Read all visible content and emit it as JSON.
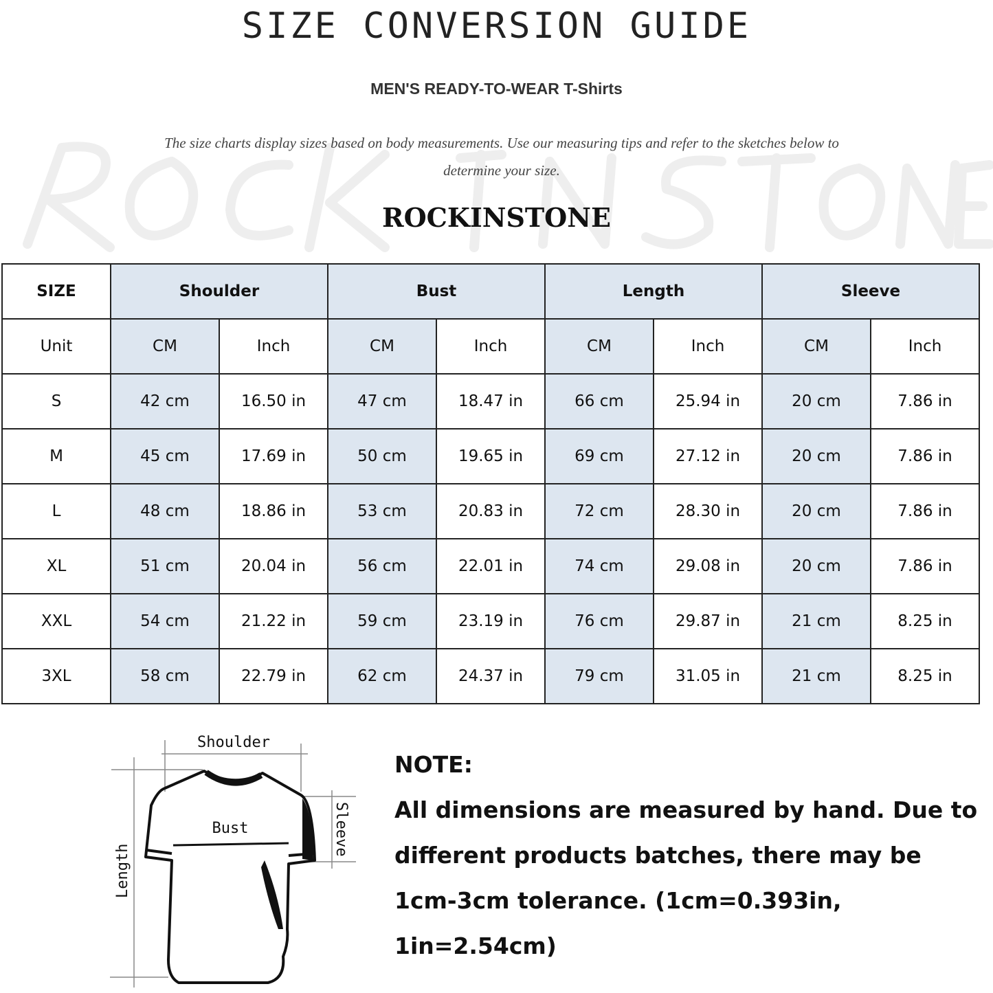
{
  "title": "SIZE CONVERSION GUIDE",
  "subtitle": "MEN'S READY-TO-WEAR T-Shirts",
  "description": "The size charts display sizes based on body measurements. Use our measuring tips and refer to the sketches below to determine your size.",
  "watermark": "ROCK IN STONE",
  "brand": "ROCKINSTONE",
  "table": {
    "size_header": "SIZE",
    "groups": [
      "Shoulder",
      "Bust",
      "Length",
      "Sleeve"
    ],
    "unit_label": "Unit",
    "units": [
      "CM",
      "Inch",
      "CM",
      "Inch",
      "CM",
      "Inch",
      "CM",
      "Inch"
    ],
    "rows": [
      {
        "size": "S",
        "values": [
          "42 cm",
          "16.50 in",
          "47 cm",
          "18.47  in",
          "66 cm",
          "25.94  in",
          "20 cm",
          "7.86  in"
        ]
      },
      {
        "size": "M",
        "values": [
          "45 cm",
          "17.69  in",
          "50 cm",
          "19.65  in",
          "69 cm",
          "27.12  in",
          "20 cm",
          "7.86  in"
        ]
      },
      {
        "size": "L",
        "values": [
          "48 cm",
          "18.86  in",
          "53 cm",
          "20.83  in",
          "72 cm",
          "28.30  in",
          "20 cm",
          "7.86  in"
        ]
      },
      {
        "size": "XL",
        "values": [
          "51 cm",
          "20.04  in",
          "56 cm",
          "22.01  in",
          "74 cm",
          "29.08  in",
          "20 cm",
          "7.86  in"
        ]
      },
      {
        "size": "XXL",
        "values": [
          "54 cm",
          "21.22  in",
          "59 cm",
          "23.19  in",
          "76 cm",
          "29.87  in",
          "21 cm",
          "8.25  in"
        ]
      },
      {
        "size": "3XL",
        "values": [
          "58 cm",
          "22.79  in",
          "62 cm",
          "24.37  in",
          "79 cm",
          "31.05  in",
          "21 cm",
          "8.25  in"
        ]
      }
    ],
    "header_fill": "#dde6f0"
  },
  "diagram": {
    "labels": {
      "shoulder": "Shoulder",
      "bust": "Bust",
      "sleeve": "Sleeve",
      "length": "Length"
    }
  },
  "note": {
    "heading": "NOTE:",
    "text": "All dimensions are measured by hand. Due to different products batches, there may be 1cm-3cm tolerance. (1cm=0.393in, 1in=2.54cm)"
  }
}
